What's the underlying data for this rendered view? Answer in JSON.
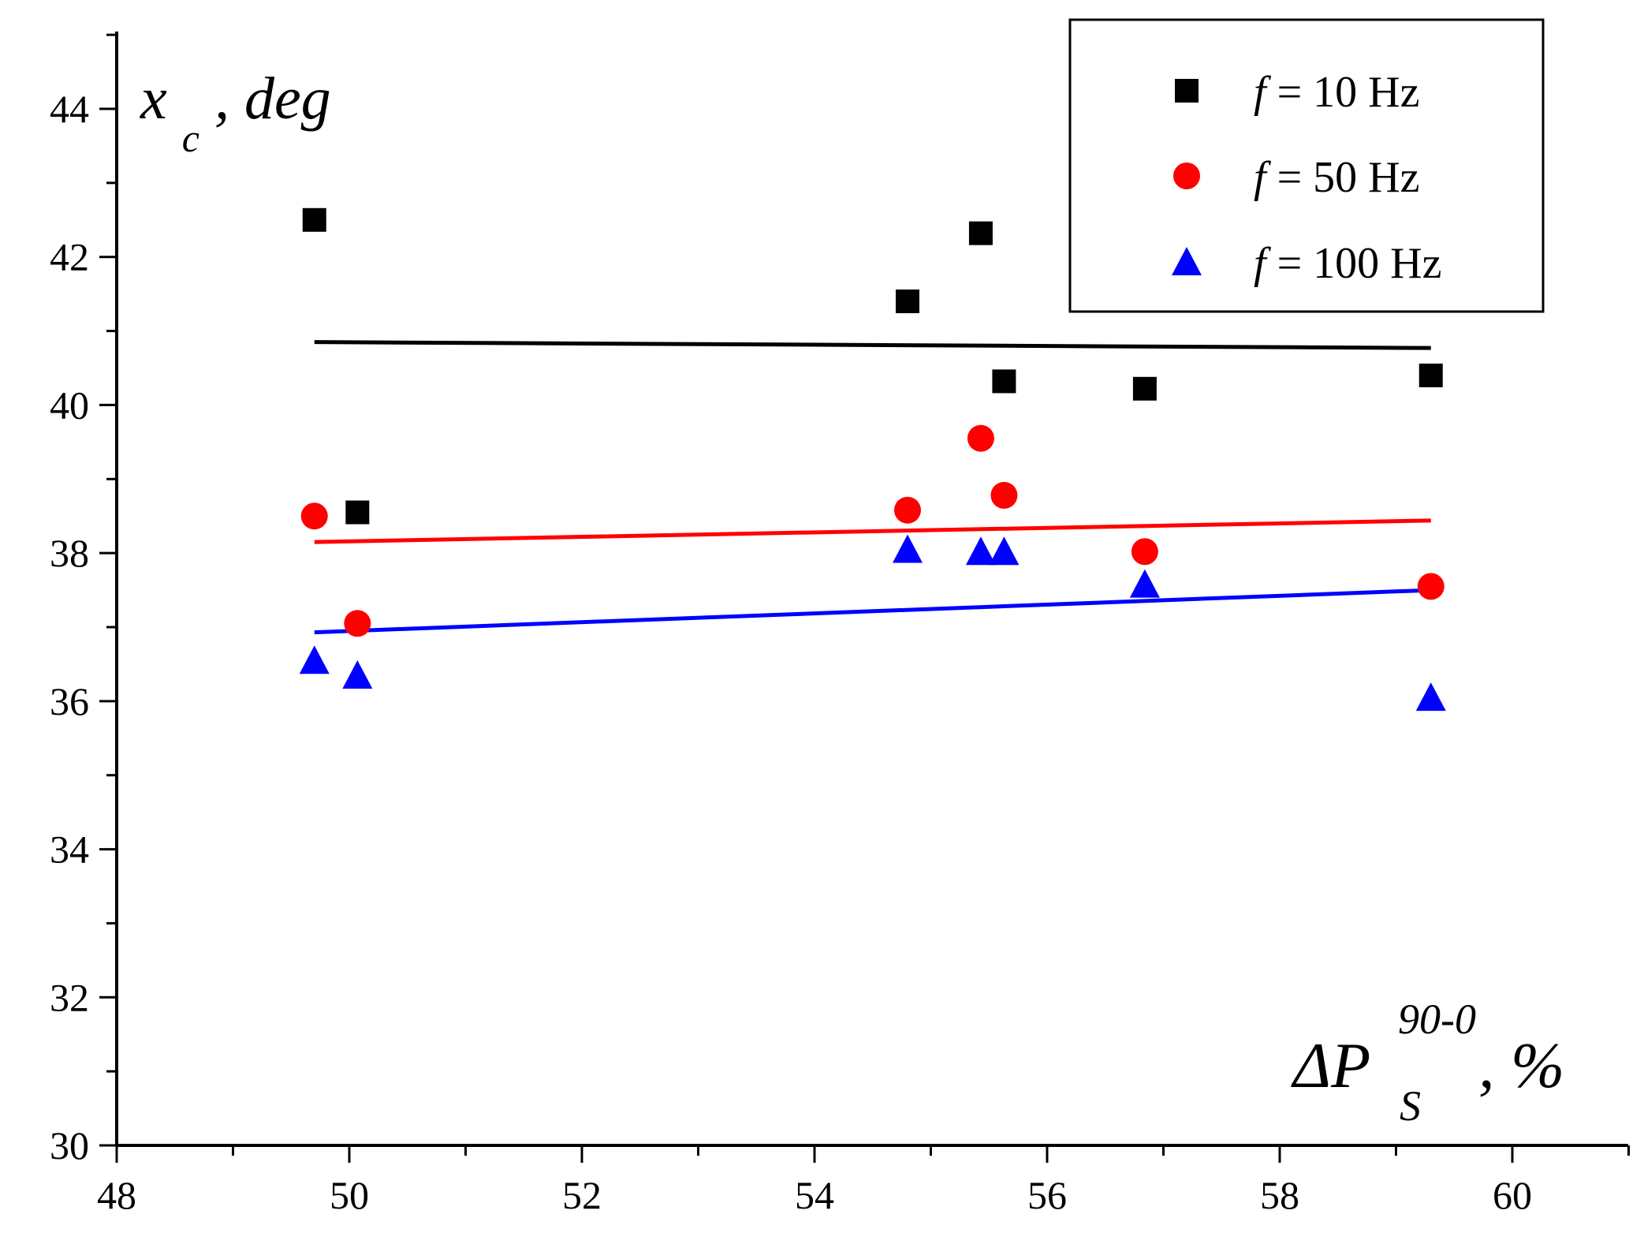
{
  "chart_data": {
    "type": "scatter",
    "xlabel": {
      "base": "ΔP",
      "superscript": "90-0",
      "subscript": "S",
      "suffix": ", %"
    },
    "ylabel": {
      "base": "x",
      "subscript": "c",
      "suffix": ", deg"
    },
    "xlim": [
      48,
      61
    ],
    "ylim": [
      30,
      45
    ],
    "x_ticks": [
      "48",
      "50",
      "52",
      "54",
      "56",
      "58",
      "60"
    ],
    "y_ticks": [
      "30",
      "32",
      "34",
      "36",
      "38",
      "40",
      "42",
      "44"
    ],
    "legend_position": "top-right",
    "series": [
      {
        "name": "f = 10 Hz",
        "legend_var": "f",
        "legend_rest": " = 10 Hz",
        "marker": "square",
        "color": "#000000",
        "x": [
          49.7,
          50.07,
          54.8,
          55.43,
          55.63,
          56.84,
          59.3
        ],
        "y": [
          42.5,
          38.55,
          41.4,
          42.32,
          40.32,
          40.22,
          40.4
        ],
        "fit": {
          "x": [
            49.7,
            59.3
          ],
          "y": [
            40.85,
            40.77
          ]
        }
      },
      {
        "name": "f = 50 Hz",
        "legend_var": "f",
        "legend_rest": " = 50 Hz",
        "marker": "circle",
        "color": "#ff0000",
        "x": [
          49.7,
          50.07,
          54.8,
          55.43,
          55.63,
          56.84,
          59.3
        ],
        "y": [
          38.5,
          37.05,
          38.58,
          39.55,
          38.78,
          38.02,
          37.55
        ],
        "fit": {
          "x": [
            49.7,
            59.3
          ],
          "y": [
            38.15,
            38.44
          ]
        }
      },
      {
        "name": "f = 100 Hz",
        "legend_var": "f",
        "legend_rest": " = 100 Hz",
        "marker": "triangle",
        "color": "#0000ff",
        "x": [
          49.7,
          50.07,
          54.8,
          55.43,
          55.63,
          56.84,
          59.3
        ],
        "y": [
          36.55,
          36.35,
          38.05,
          38.02,
          38.02,
          37.58,
          36.05
        ],
        "fit": {
          "x": [
            49.7,
            59.3
          ],
          "y": [
            36.93,
            37.5
          ]
        }
      }
    ]
  }
}
